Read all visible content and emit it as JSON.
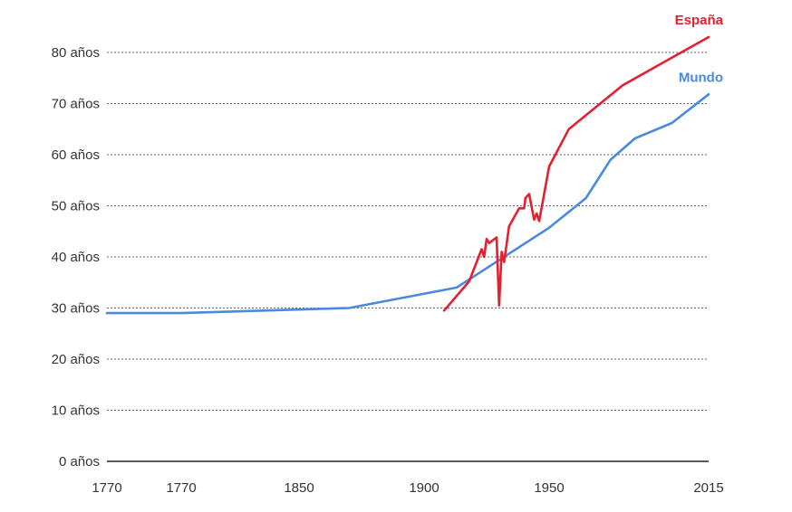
{
  "chart_data": {
    "type": "line",
    "title": "",
    "xlabel": "",
    "ylabel": "",
    "ylim": [
      0,
      80
    ],
    "grid": true,
    "y_ticks": [
      {
        "value": 0,
        "label": "0 años"
      },
      {
        "value": 10,
        "label": "10 años"
      },
      {
        "value": 20,
        "label": "20 años"
      },
      {
        "value": 30,
        "label": "30 años"
      },
      {
        "value": 40,
        "label": "40 años"
      },
      {
        "value": 50,
        "label": "50 años"
      },
      {
        "value": 60,
        "label": "60 años"
      },
      {
        "value": 70,
        "label": "70 años"
      },
      {
        "value": 80,
        "label": "80 años"
      }
    ],
    "x_ticks": [
      {
        "pos": 0,
        "label": "1770"
      },
      {
        "pos": 1,
        "label": "1770"
      },
      {
        "pos": 2,
        "label": "1850"
      },
      {
        "pos": 3,
        "label": "1900"
      },
      {
        "pos": 4,
        "label": "1950"
      },
      {
        "pos": 5,
        "label": "2015"
      }
    ],
    "series": [
      {
        "name": "España",
        "color": "#e3202f",
        "points": [
          [
            1908,
            29.5
          ],
          [
            1918,
            35.2
          ],
          [
            1923,
            41.5
          ],
          [
            1924,
            40.0
          ],
          [
            1925,
            43.5
          ],
          [
            1926,
            42.7
          ],
          [
            1929,
            43.8
          ],
          [
            1930,
            30.5
          ],
          [
            1931,
            41.0
          ],
          [
            1932,
            39.0
          ],
          [
            1934,
            46.0
          ],
          [
            1938,
            49.5
          ],
          [
            1940,
            49.5
          ],
          [
            1940.5,
            51.5
          ],
          [
            1942,
            52.3
          ],
          [
            1944,
            47.3
          ],
          [
            1945,
            48.5
          ],
          [
            1946,
            47.0
          ],
          [
            1950,
            57.7
          ],
          [
            1958,
            65.0
          ],
          [
            1980,
            73.6
          ],
          [
            2015,
            83.0
          ]
        ]
      },
      {
        "name": "Mundo",
        "color": "#4a89dc",
        "points": [
          [
            1770,
            29.0
          ],
          [
            1800,
            29.0
          ],
          [
            1870,
            30.0
          ],
          [
            1913,
            34.0
          ],
          [
            1950,
            45.7
          ],
          [
            1965,
            51.5
          ],
          [
            1975,
            59.0
          ],
          [
            1985,
            63.2
          ],
          [
            2000,
            66.2
          ],
          [
            2015,
            71.8
          ]
        ]
      }
    ]
  }
}
